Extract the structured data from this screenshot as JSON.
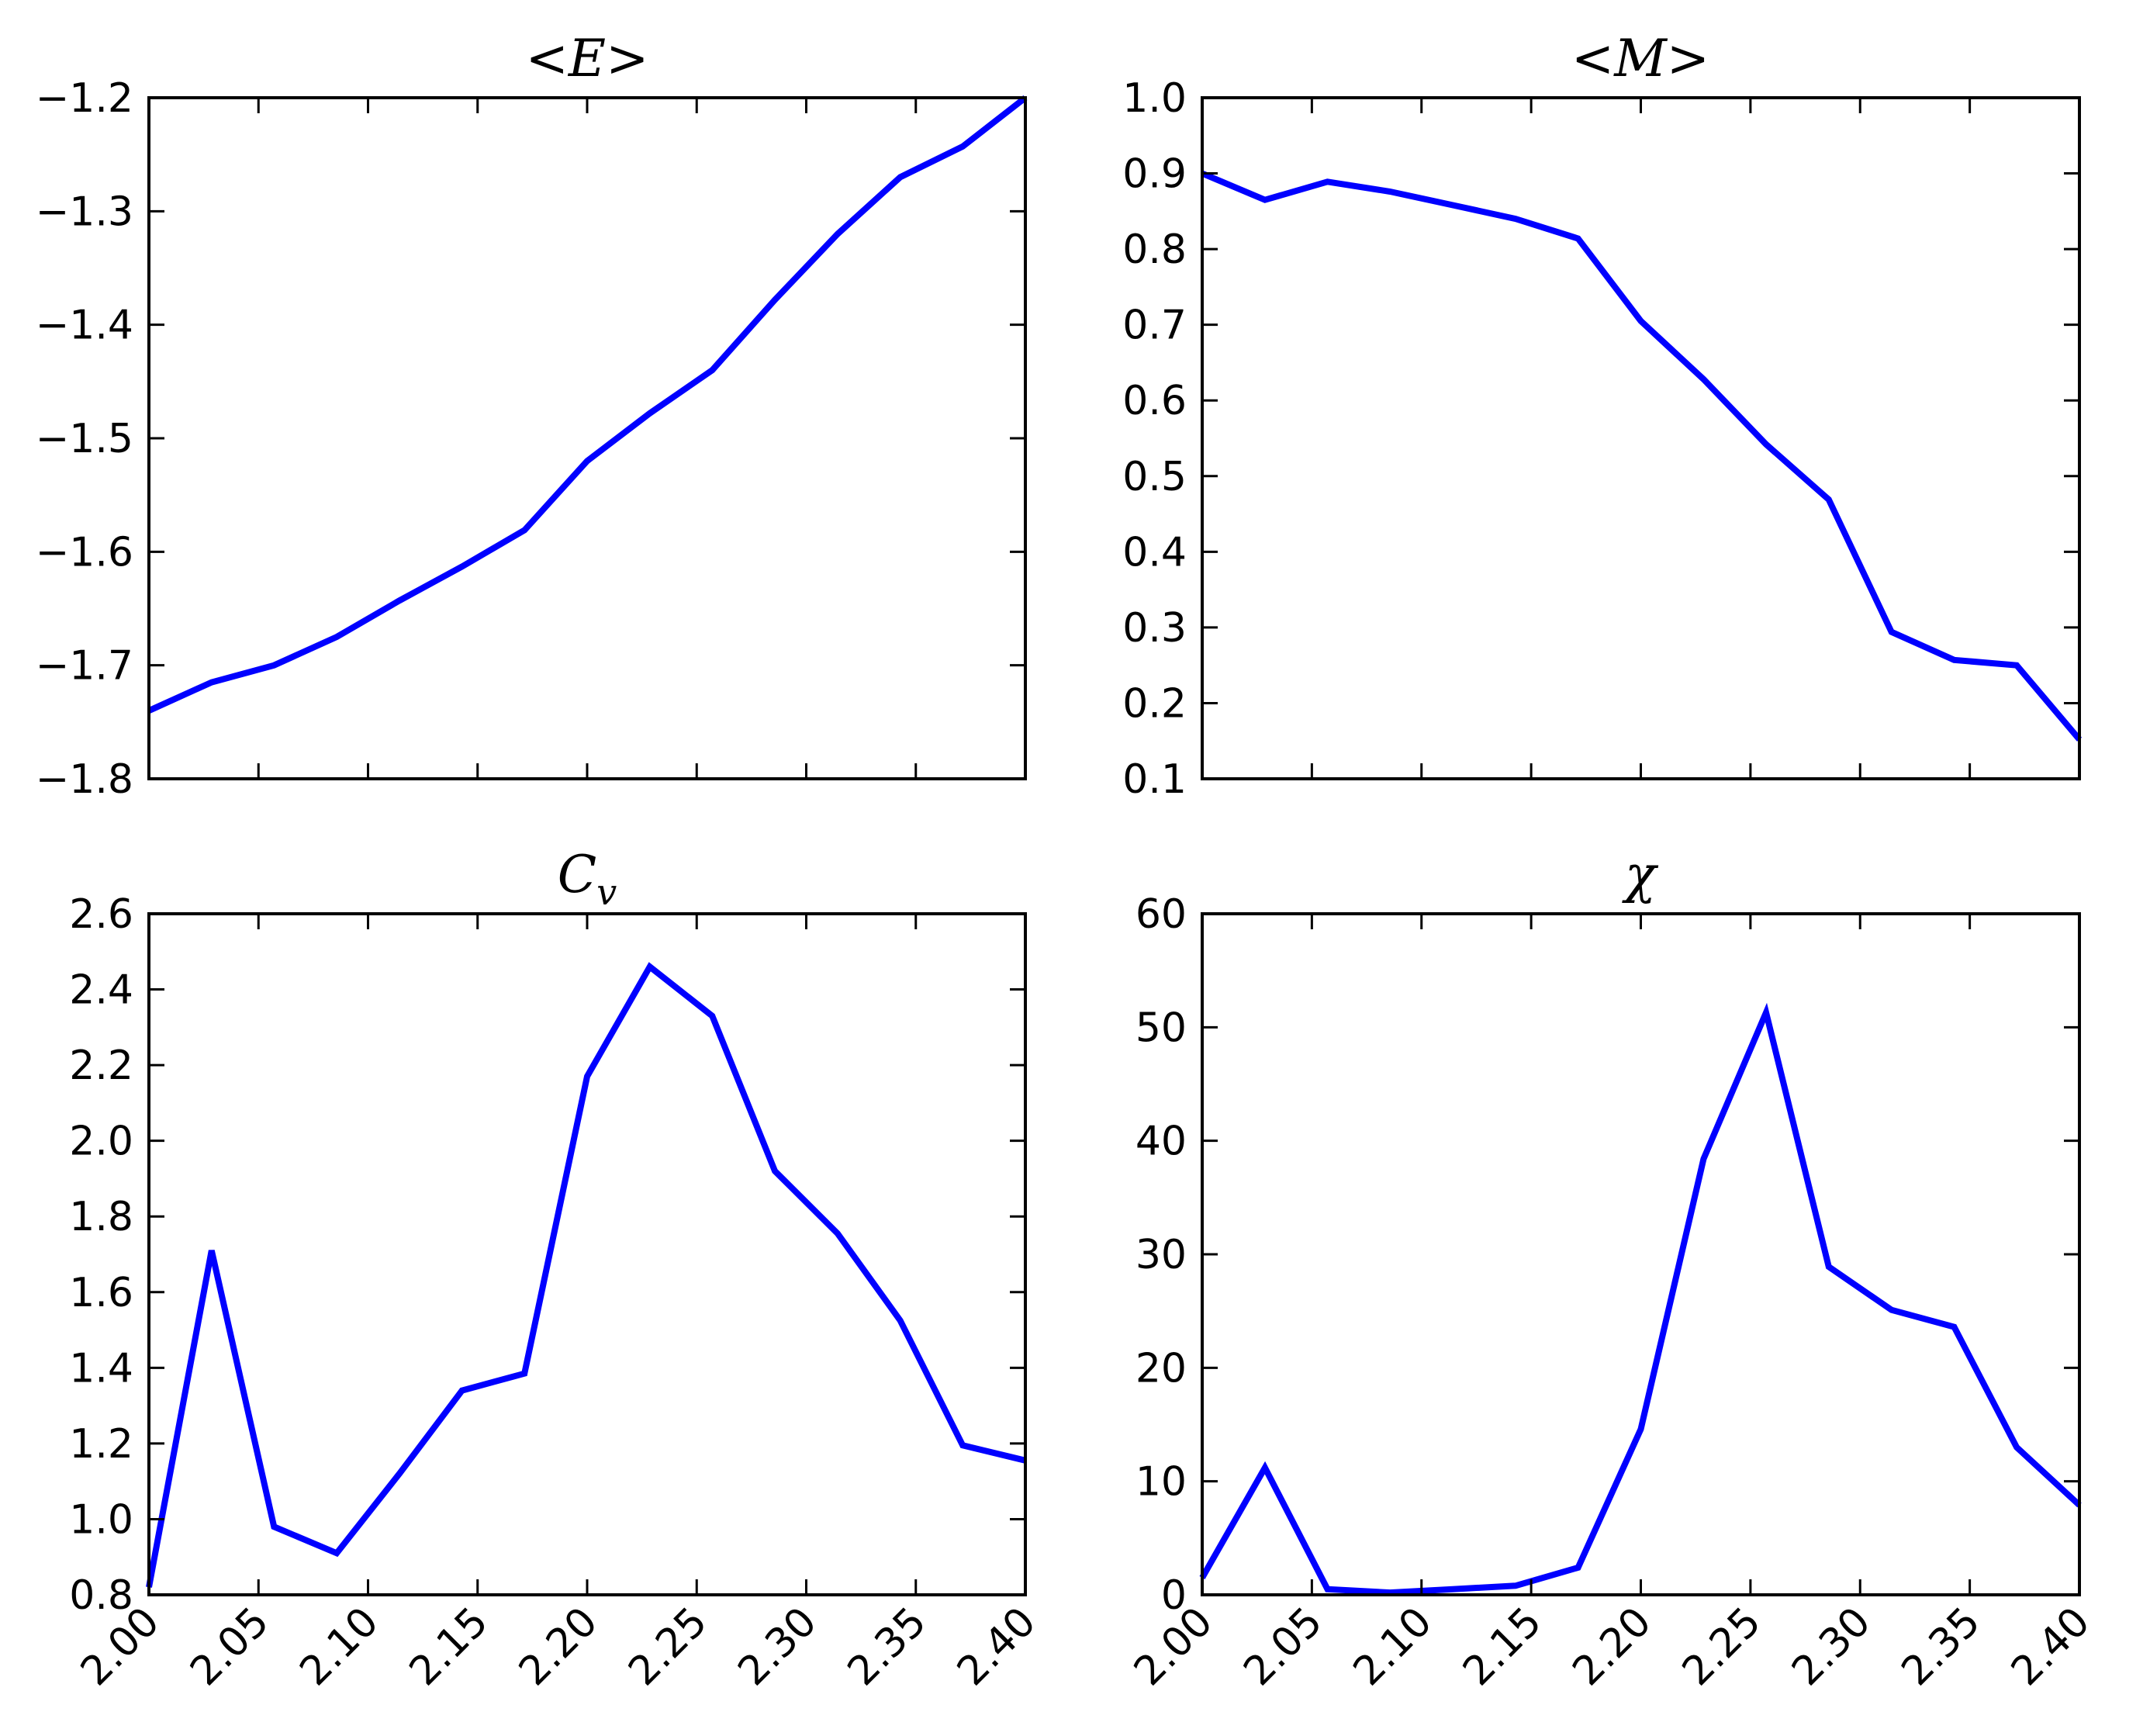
{
  "figure": {
    "line_color": "#0000ff"
  },
  "chart_data": [
    {
      "id": "energy",
      "type": "line",
      "title": "<E>",
      "xlabel": "",
      "ylabel": "",
      "xlim": [
        2.0,
        2.4
      ],
      "ylim": [
        -1.8,
        -1.2
      ],
      "grid": false,
      "x_ticks": [
        "2.00",
        "2.05",
        "2.10",
        "2.15",
        "2.20",
        "2.25",
        "2.30",
        "2.35",
        "2.40"
      ],
      "x_ticks_visible": false,
      "y_ticks": [
        "−1.8",
        "−1.7",
        "−1.6",
        "−1.5",
        "−1.4",
        "−1.3",
        "−1.2"
      ],
      "series": [
        {
          "x": [
            2.0,
            2.0286,
            2.0571,
            2.0857,
            2.1143,
            2.1429,
            2.1714,
            2.2,
            2.2286,
            2.2571,
            2.2857,
            2.3143,
            2.3429,
            2.3714,
            2.4
          ],
          "values": [
            -1.74,
            -1.715,
            -1.7,
            -1.675,
            -1.643,
            -1.613,
            -1.581,
            -1.52,
            -1.478,
            -1.44,
            -1.378,
            -1.32,
            -1.27,
            -1.243,
            -1.2
          ]
        }
      ]
    },
    {
      "id": "magnetization",
      "type": "line",
      "title": "<M>",
      "xlabel": "",
      "ylabel": "",
      "xlim": [
        2.0,
        2.4
      ],
      "ylim": [
        0.1,
        1.0
      ],
      "grid": false,
      "x_ticks": [
        "2.00",
        "2.05",
        "2.10",
        "2.15",
        "2.20",
        "2.25",
        "2.30",
        "2.35",
        "2.40"
      ],
      "x_ticks_visible": false,
      "y_ticks": [
        "0.1",
        "0.2",
        "0.3",
        "0.4",
        "0.5",
        "0.6",
        "0.7",
        "0.8",
        "0.9",
        "1.0"
      ],
      "series": [
        {
          "x": [
            2.0,
            2.0286,
            2.0571,
            2.0857,
            2.1143,
            2.1429,
            2.1714,
            2.2,
            2.2286,
            2.2571,
            2.2857,
            2.3143,
            2.3429,
            2.3714,
            2.4
          ],
          "values": [
            0.9,
            0.865,
            0.889,
            0.876,
            0.858,
            0.84,
            0.814,
            0.705,
            0.628,
            0.542,
            0.469,
            0.294,
            0.257,
            0.25,
            0.152
          ]
        }
      ]
    },
    {
      "id": "specific-heat",
      "type": "line",
      "title": "C",
      "title_subscript": "v",
      "xlabel": "",
      "ylabel": "",
      "xlim": [
        2.0,
        2.4
      ],
      "ylim": [
        0.8,
        2.6
      ],
      "grid": false,
      "x_ticks": [
        "2.00",
        "2.05",
        "2.10",
        "2.15",
        "2.20",
        "2.25",
        "2.30",
        "2.35",
        "2.40"
      ],
      "x_ticks_visible": true,
      "y_ticks": [
        "0.8",
        "1.0",
        "1.2",
        "1.4",
        "1.6",
        "1.8",
        "2.0",
        "2.2",
        "2.4",
        "2.6"
      ],
      "series": [
        {
          "x": [
            2.0,
            2.0286,
            2.0571,
            2.0857,
            2.1143,
            2.1429,
            2.1714,
            2.2,
            2.2286,
            2.2571,
            2.2857,
            2.3143,
            2.3429,
            2.3714,
            2.4
          ],
          "values": [
            0.82,
            1.71,
            0.98,
            0.91,
            1.12,
            1.34,
            1.385,
            2.17,
            2.46,
            2.33,
            1.92,
            1.755,
            1.525,
            1.195,
            1.155
          ]
        }
      ]
    },
    {
      "id": "susceptibility",
      "type": "line",
      "title": "χ",
      "xlabel": "",
      "ylabel": "",
      "xlim": [
        2.0,
        2.4
      ],
      "ylim": [
        0,
        60
      ],
      "grid": false,
      "x_ticks": [
        "2.00",
        "2.05",
        "2.10",
        "2.15",
        "2.20",
        "2.25",
        "2.30",
        "2.35",
        "2.40"
      ],
      "x_ticks_visible": true,
      "y_ticks": [
        "0",
        "10",
        "20",
        "30",
        "40",
        "50",
        "60"
      ],
      "series": [
        {
          "x": [
            2.0,
            2.0286,
            2.0571,
            2.0857,
            2.1143,
            2.1429,
            2.1714,
            2.2,
            2.2286,
            2.2571,
            2.2857,
            2.3143,
            2.3429,
            2.3714,
            2.4
          ],
          "values": [
            1.5,
            11.2,
            0.5,
            0.2,
            0.5,
            0.8,
            2.4,
            14.6,
            38.4,
            51.3,
            28.9,
            25.1,
            23.6,
            13.0,
            7.9
          ]
        }
      ]
    }
  ]
}
